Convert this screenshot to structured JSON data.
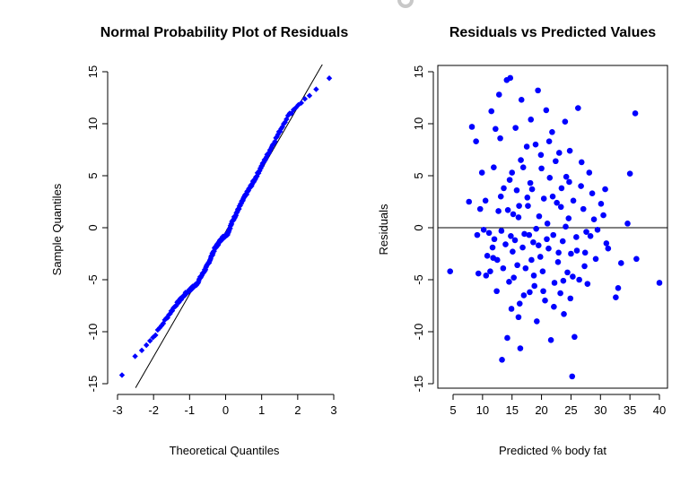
{
  "window": {
    "loading_indicator": "spinner-icon"
  },
  "chart_data": [
    {
      "type": "scatter",
      "title": "Normal Probability Plot of Residuals",
      "xlabel": "Theoretical Quantiles",
      "ylabel": "Sample Quantiles",
      "xlim": [
        -3,
        3
      ],
      "ylim": [
        -15,
        15
      ],
      "xticks": [
        "-3",
        "-2",
        "-1",
        "0",
        "1",
        "2",
        "3"
      ],
      "xtick_values": [
        -3,
        -2,
        -1,
        0,
        1,
        2,
        3
      ],
      "yticks": [
        "-15",
        "-10",
        "-5",
        "0",
        "5",
        "10",
        "15"
      ],
      "ytick_values": [
        -15,
        -10,
        -5,
        0,
        5,
        10,
        15
      ],
      "box": false,
      "point_color": "#0000ff",
      "marker": "diamond",
      "reference_line": {
        "x": [
          -2.5,
          2.7
        ],
        "y": [
          -15.4,
          15.8
        ]
      },
      "n_points": 252,
      "x_range": [
        -2.9,
        2.9
      ],
      "quantile_knots": {
        "x": [
          -2.9,
          -2.6,
          -2.3,
          -2.0,
          -1.7,
          -1.4,
          -1.1,
          -0.8,
          -0.5,
          -0.3,
          -0.1,
          0.05,
          0.2,
          0.5,
          0.8,
          1.1,
          1.4,
          1.7,
          2.0,
          2.3,
          2.6,
          2.9
        ],
        "y": [
          -14.3,
          -12.7,
          -11.6,
          -10.5,
          -9.0,
          -7.5,
          -6.3,
          -5.4,
          -3.6,
          -2.0,
          -1.0,
          -0.6,
          0.7,
          2.8,
          4.6,
          6.6,
          8.6,
          10.6,
          11.8,
          12.6,
          13.7,
          14.4
        ]
      }
    },
    {
      "type": "scatter",
      "title": "Residuals vs Predicted Values",
      "xlabel": "Predicted % body fat",
      "ylabel": "Residuals",
      "xlim": [
        4,
        40
      ],
      "ylim": [
        -15,
        15
      ],
      "xticks": [
        "5",
        "10",
        "15",
        "20",
        "25",
        "30",
        "35",
        "40"
      ],
      "xtick_values": [
        5,
        10,
        15,
        20,
        25,
        30,
        35,
        40
      ],
      "yticks": [
        "-15",
        "-10",
        "-5",
        "0",
        "5",
        "10",
        "15"
      ],
      "ytick_values": [
        -15,
        -10,
        -5,
        0,
        5,
        10,
        15
      ],
      "box": true,
      "point_color": "#0000ff",
      "marker": "circle",
      "reference_line": {
        "h": 0
      },
      "points": [
        [
          4.5,
          -4.2
        ],
        [
          8.2,
          9.7
        ],
        [
          8.9,
          8.3
        ],
        [
          7.7,
          2.5
        ],
        [
          9.1,
          -0.7
        ],
        [
          9.3,
          -4.4
        ],
        [
          9.9,
          5.3
        ],
        [
          10.5,
          2.6
        ],
        [
          10.6,
          -4.6
        ],
        [
          11.1,
          -0.5
        ],
        [
          11.5,
          11.2
        ],
        [
          11.9,
          5.8
        ],
        [
          11.8,
          -2.9
        ],
        [
          12.2,
          9.5
        ],
        [
          12.4,
          -6.1
        ],
        [
          12.8,
          12.8
        ],
        [
          13.0,
          8.6
        ],
        [
          13.2,
          -0.3
        ],
        [
          13.6,
          3.8
        ],
        [
          13.9,
          -1.6
        ],
        [
          14.1,
          14.2
        ],
        [
          14.3,
          1.7
        ],
        [
          14.5,
          -5.2
        ],
        [
          14.2,
          -10.6
        ],
        [
          14.7,
          14.4
        ],
        [
          15.0,
          5.3
        ],
        [
          15.1,
          -2.3
        ],
        [
          15.3,
          -4.8
        ],
        [
          15.6,
          9.6
        ],
        [
          15.8,
          3.6
        ],
        [
          16.1,
          1.0
        ],
        [
          16.3,
          -7.3
        ],
        [
          16.1,
          -8.6
        ],
        [
          16.4,
          -11.6
        ],
        [
          16.6,
          12.3
        ],
        [
          16.9,
          5.8
        ],
        [
          17.1,
          -0.6
        ],
        [
          17.3,
          -3.9
        ],
        [
          17.5,
          7.8
        ],
        [
          17.7,
          2.1
        ],
        [
          18.0,
          -6.2
        ],
        [
          18.2,
          10.4
        ],
        [
          18.4,
          3.7
        ],
        [
          18.6,
          -1.4
        ],
        [
          18.8,
          -5.6
        ],
        [
          19.0,
          8.0
        ],
        [
          19.2,
          -9.0
        ],
        [
          19.4,
          13.2
        ],
        [
          19.6,
          1.1
        ],
        [
          19.8,
          -2.8
        ],
        [
          20.0,
          5.7
        ],
        [
          20.2,
          -4.2
        ],
        [
          20.4,
          2.8
        ],
        [
          20.6,
          -7.0
        ],
        [
          20.8,
          11.3
        ],
        [
          21.0,
          0.4
        ],
        [
          21.2,
          -2.0
        ],
        [
          21.4,
          4.8
        ],
        [
          21.6,
          -10.8
        ],
        [
          21.8,
          9.2
        ],
        [
          22.0,
          -0.7
        ],
        [
          22.2,
          -5.3
        ],
        [
          22.4,
          6.4
        ],
        [
          22.6,
          2.4
        ],
        [
          22.8,
          -3.3
        ],
        [
          23.0,
          7.2
        ],
        [
          23.2,
          -6.3
        ],
        [
          23.4,
          3.8
        ],
        [
          23.6,
          -1.3
        ],
        [
          23.8,
          -8.3
        ],
        [
          24.0,
          10.2
        ],
        [
          24.2,
          4.9
        ],
        [
          24.4,
          -4.3
        ],
        [
          24.6,
          0.9
        ],
        [
          24.8,
          7.4
        ],
        [
          25.0,
          -2.5
        ],
        [
          25.2,
          -14.3
        ],
        [
          25.4,
          2.6
        ],
        [
          25.6,
          -10.5
        ],
        [
          25.9,
          -0.9
        ],
        [
          26.2,
          11.5
        ],
        [
          26.4,
          -5.0
        ],
        [
          26.8,
          6.3
        ],
        [
          27.1,
          1.8
        ],
        [
          27.4,
          -2.4
        ],
        [
          27.8,
          -5.4
        ],
        [
          28.1,
          5.3
        ],
        [
          28.3,
          -0.8
        ],
        [
          28.6,
          3.3
        ],
        [
          29.2,
          -3.0
        ],
        [
          30.1,
          2.3
        ],
        [
          30.5,
          1.2
        ],
        [
          31.0,
          -1.5
        ],
        [
          32.6,
          -6.7
        ],
        [
          33.0,
          -5.8
        ],
        [
          33.5,
          -3.4
        ],
        [
          34.6,
          0.4
        ],
        [
          35.0,
          5.2
        ],
        [
          35.9,
          11.0
        ],
        [
          40.0,
          -5.3
        ],
        [
          36.1,
          -3.0
        ],
        [
          31.3,
          -2.0
        ],
        [
          30.8,
          3.7
        ],
        [
          29.5,
          -0.2
        ],
        [
          27.3,
          -3.7
        ],
        [
          26.7,
          4.0
        ],
        [
          24.9,
          -6.8
        ],
        [
          24.1,
          0.1
        ],
        [
          22.9,
          -2.4
        ],
        [
          21.9,
          3.0
        ],
        [
          20.9,
          -1.1
        ],
        [
          19.9,
          7.0
        ],
        [
          19.1,
          -0.1
        ],
        [
          18.3,
          -3.1
        ],
        [
          17.6,
          2.9
        ],
        [
          16.8,
          -1.9
        ],
        [
          15.9,
          -3.6
        ],
        [
          15.2,
          1.3
        ],
        [
          14.8,
          -0.8
        ],
        [
          13.5,
          -3.9
        ],
        [
          12.7,
          1.6
        ],
        [
          12.0,
          -1.1
        ],
        [
          11.3,
          -4.2
        ],
        [
          10.2,
          -0.2
        ],
        [
          9.6,
          1.8
        ],
        [
          13.3,
          -12.7
        ],
        [
          14.9,
          -7.8
        ],
        [
          17.0,
          -6.5
        ],
        [
          18.7,
          -4.6
        ],
        [
          20.3,
          -6.1
        ],
        [
          22.1,
          -7.6
        ],
        [
          23.7,
          -5.1
        ],
        [
          25.3,
          -4.7
        ],
        [
          16.5,
          6.5
        ],
        [
          18.1,
          4.3
        ],
        [
          21.3,
          8.3
        ],
        [
          23.3,
          2.0
        ],
        [
          24.7,
          4.4
        ],
        [
          26.0,
          -2.2
        ],
        [
          27.6,
          -0.4
        ],
        [
          28.9,
          0.8
        ],
        [
          19.5,
          -1.7
        ],
        [
          17.9,
          -0.7
        ],
        [
          16.2,
          2.1
        ],
        [
          14.6,
          4.6
        ],
        [
          13.1,
          3.0
        ],
        [
          11.7,
          -1.9
        ],
        [
          10.8,
          -2.7
        ],
        [
          12.5,
          -3.1
        ],
        [
          15.5,
          -1.2
        ]
      ]
    }
  ]
}
